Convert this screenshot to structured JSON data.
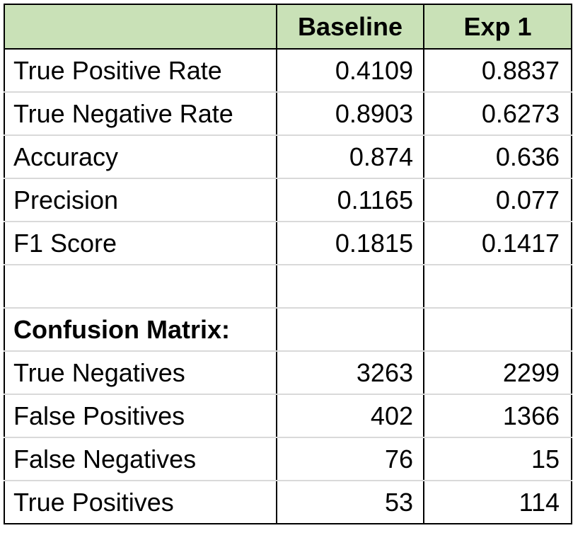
{
  "table": {
    "header": {
      "label": "",
      "baseline": "Baseline",
      "exp1": "Exp 1"
    },
    "rows": [
      {
        "label": "True Positive Rate",
        "baseline": "0.4109",
        "exp1": "0.8837"
      },
      {
        "label": "True Negative Rate",
        "baseline": "0.8903",
        "exp1": "0.6273"
      },
      {
        "label": "Accuracy",
        "baseline": "0.874",
        "exp1": "0.636"
      },
      {
        "label": "Precision",
        "baseline": "0.1165",
        "exp1": "0.077"
      },
      {
        "label": "F1 Score",
        "baseline": "0.1815",
        "exp1": "0.1417"
      },
      {
        "label": "",
        "baseline": "",
        "exp1": ""
      },
      {
        "label": "Confusion Matrix:",
        "baseline": "",
        "exp1": ""
      },
      {
        "label": "True Negatives",
        "baseline": "3263",
        "exp1": "2299"
      },
      {
        "label": "False Positives",
        "baseline": "402",
        "exp1": "1366"
      },
      {
        "label": "False Negatives",
        "baseline": "76",
        "exp1": "15"
      },
      {
        "label": "True Positives",
        "baseline": "53",
        "exp1": "114"
      }
    ]
  },
  "colors": {
    "header_background": "#c9e1b7",
    "gridline": "#d9d9d9",
    "border": "#000000"
  }
}
